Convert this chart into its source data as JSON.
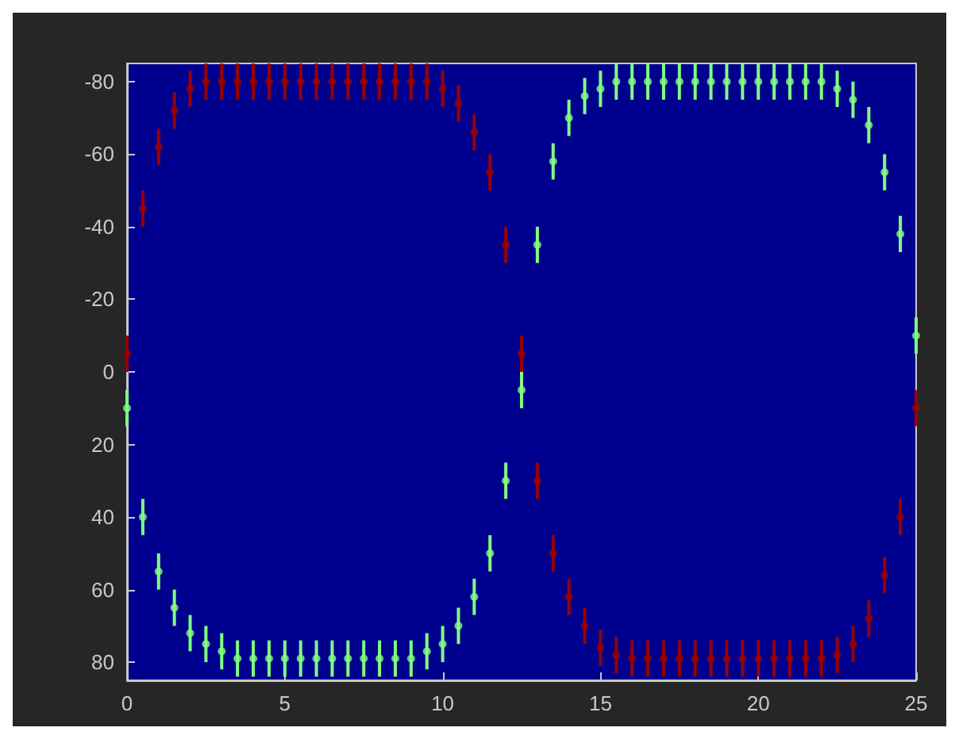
{
  "chart_data": {
    "type": "scatter",
    "xlim": [
      0,
      25
    ],
    "xticks": [
      0,
      5,
      10,
      15,
      20,
      25
    ],
    "ylim": [
      85,
      -85
    ],
    "yticks": [
      -80,
      -60,
      -40,
      -20,
      0,
      20,
      40,
      60,
      80
    ],
    "grid": false,
    "series": [
      {
        "color": "#9a0000",
        "x": [
          0,
          0.5,
          1,
          1.5,
          2,
          2.5,
          3,
          3.5,
          4,
          4.5,
          5,
          5.5,
          6,
          6.5,
          7,
          7.5,
          8,
          8.5,
          9,
          9.5,
          10,
          10.5,
          11,
          11.5,
          12,
          12.5,
          13,
          13.5,
          14,
          14.5,
          15,
          15.5,
          16,
          16.5,
          17,
          17.5,
          18,
          18.5,
          19,
          19.5,
          20,
          20.5,
          21,
          21.5,
          22,
          22.5,
          23,
          23.5,
          24,
          24.5,
          25
        ],
        "values": [
          -5,
          -45,
          -62,
          -72,
          -78,
          -80,
          -80,
          -80,
          -80,
          -80,
          -80,
          -80,
          -80,
          -80,
          -80,
          -80,
          -80,
          -80,
          -80,
          -80,
          -78,
          -74,
          -66,
          -55,
          -35,
          -5,
          30,
          50,
          62,
          70,
          76,
          78,
          79,
          79,
          79,
          79,
          79,
          79,
          79,
          79,
          79,
          79,
          79,
          79,
          79,
          78,
          75,
          68,
          56,
          40,
          10
        ],
        "errors": [
          5,
          5,
          5,
          5,
          5,
          5,
          5,
          5,
          5,
          5,
          5,
          5,
          5,
          5,
          5,
          5,
          5,
          5,
          5,
          5,
          5,
          5,
          5,
          5,
          5,
          5,
          5,
          5,
          5,
          5,
          5,
          5,
          5,
          5,
          5,
          5,
          5,
          5,
          5,
          5,
          5,
          5,
          5,
          5,
          5,
          5,
          5,
          5,
          5,
          5,
          5
        ]
      },
      {
        "color": "#80ff80",
        "x": [
          0,
          0.5,
          1,
          1.5,
          2,
          2.5,
          3,
          3.5,
          4,
          4.5,
          5,
          5.5,
          6,
          6.5,
          7,
          7.5,
          8,
          8.5,
          9,
          9.5,
          10,
          10.5,
          11,
          11.5,
          12,
          12.5,
          13,
          13.5,
          14,
          14.5,
          15,
          15.5,
          16,
          16.5,
          17,
          17.5,
          18,
          18.5,
          19,
          19.5,
          20,
          20.5,
          21,
          21.5,
          22,
          22.5,
          23,
          23.5,
          24,
          24.5,
          25
        ],
        "values": [
          10,
          40,
          55,
          65,
          72,
          75,
          77,
          79,
          79,
          79,
          79,
          79,
          79,
          79,
          79,
          79,
          79,
          79,
          79,
          77,
          75,
          70,
          62,
          50,
          30,
          5,
          -35,
          -58,
          -70,
          -76,
          -78,
          -80,
          -80,
          -80,
          -80,
          -80,
          -80,
          -80,
          -80,
          -80,
          -80,
          -80,
          -80,
          -80,
          -80,
          -78,
          -75,
          -68,
          -55,
          -38,
          -10
        ],
        "errors": [
          5,
          5,
          5,
          5,
          5,
          5,
          5,
          5,
          5,
          5,
          5,
          5,
          5,
          5,
          5,
          5,
          5,
          5,
          5,
          5,
          5,
          5,
          5,
          5,
          5,
          5,
          5,
          5,
          5,
          5,
          5,
          5,
          5,
          5,
          5,
          5,
          5,
          5,
          5,
          5,
          5,
          5,
          5,
          5,
          5,
          5,
          5,
          5,
          5,
          5,
          5
        ]
      }
    ]
  }
}
